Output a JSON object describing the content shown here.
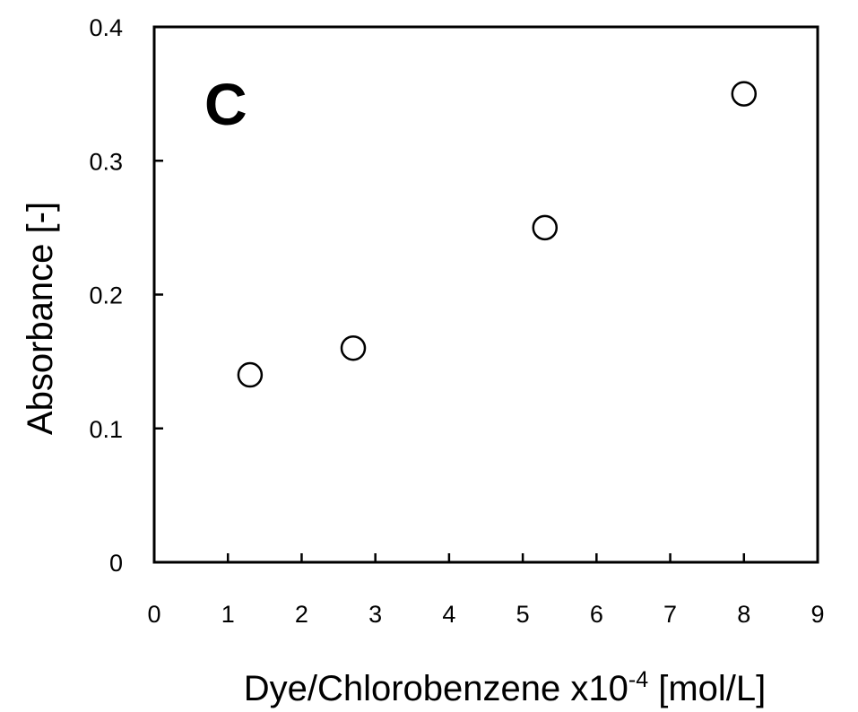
{
  "chart_data": {
    "type": "scatter",
    "panel_label": "C",
    "xlabel_main": "Dye/Chlorobenzene x10",
    "xlabel_exp": "-4",
    "xlabel_unit": " [mol/L]",
    "ylabel": "Absorbance [-]",
    "xlim": [
      0,
      9
    ],
    "ylim": [
      0,
      0.4
    ],
    "x_ticks": [
      "0",
      "1",
      "2",
      "3",
      "4",
      "5",
      "6",
      "7",
      "8",
      "9"
    ],
    "y_ticks": [
      "0",
      "0.1",
      "0.2",
      "0.3",
      "0.4"
    ],
    "grid": false,
    "marker": "open-circle",
    "series": [
      {
        "x": [
          1.3,
          2.7,
          5.3,
          8.0
        ],
        "y": [
          0.14,
          0.16,
          0.25,
          0.35
        ]
      }
    ]
  }
}
